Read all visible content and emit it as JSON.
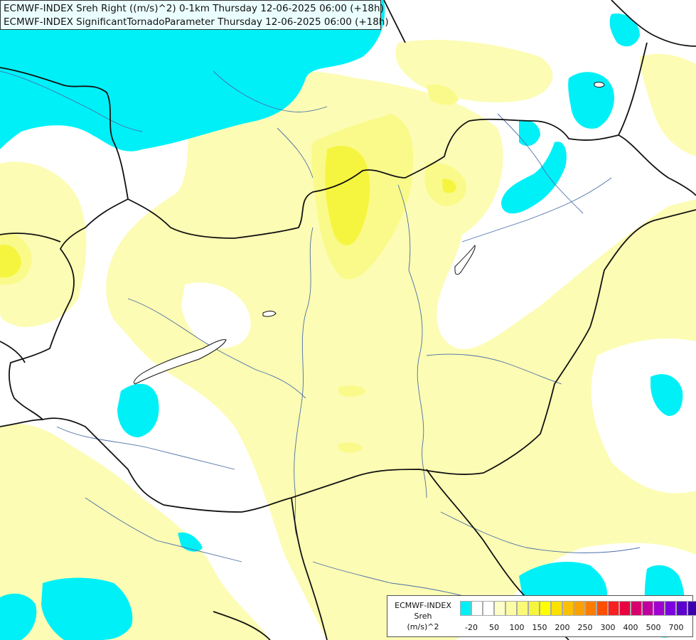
{
  "header": {
    "line1": "ECMWF-INDEX Sreh Right ((m/s)^2) 0-1km Thursday 12-06-2025 06:00 (+18h)",
    "line2": "ECMWF-INDEX SignificantTornadoParameter Thursday 12-06-2025 06:00 (+18h)"
  },
  "legend": {
    "title_lines": [
      "ECMWF-INDEX",
      "Sreh",
      "(m/s)^2"
    ],
    "colors": [
      "#00f0f8",
      "#ffffff",
      "#ffffff",
      "#fdfdc8",
      "#fcfca4",
      "#fafa78",
      "#f5f53c",
      "#ffff00",
      "#fce000",
      "#fcc000",
      "#fca000",
      "#fc7c00",
      "#fc5000",
      "#f82020",
      "#e80040",
      "#d8006c",
      "#c0009c",
      "#a000d0",
      "#7c00e0",
      "#5c00d0",
      "#3c00b0",
      "#000090"
    ],
    "tick_labels": [
      "-20",
      "50",
      "100",
      "150",
      "200",
      "250",
      "300",
      "400",
      "500",
      "700"
    ]
  }
}
